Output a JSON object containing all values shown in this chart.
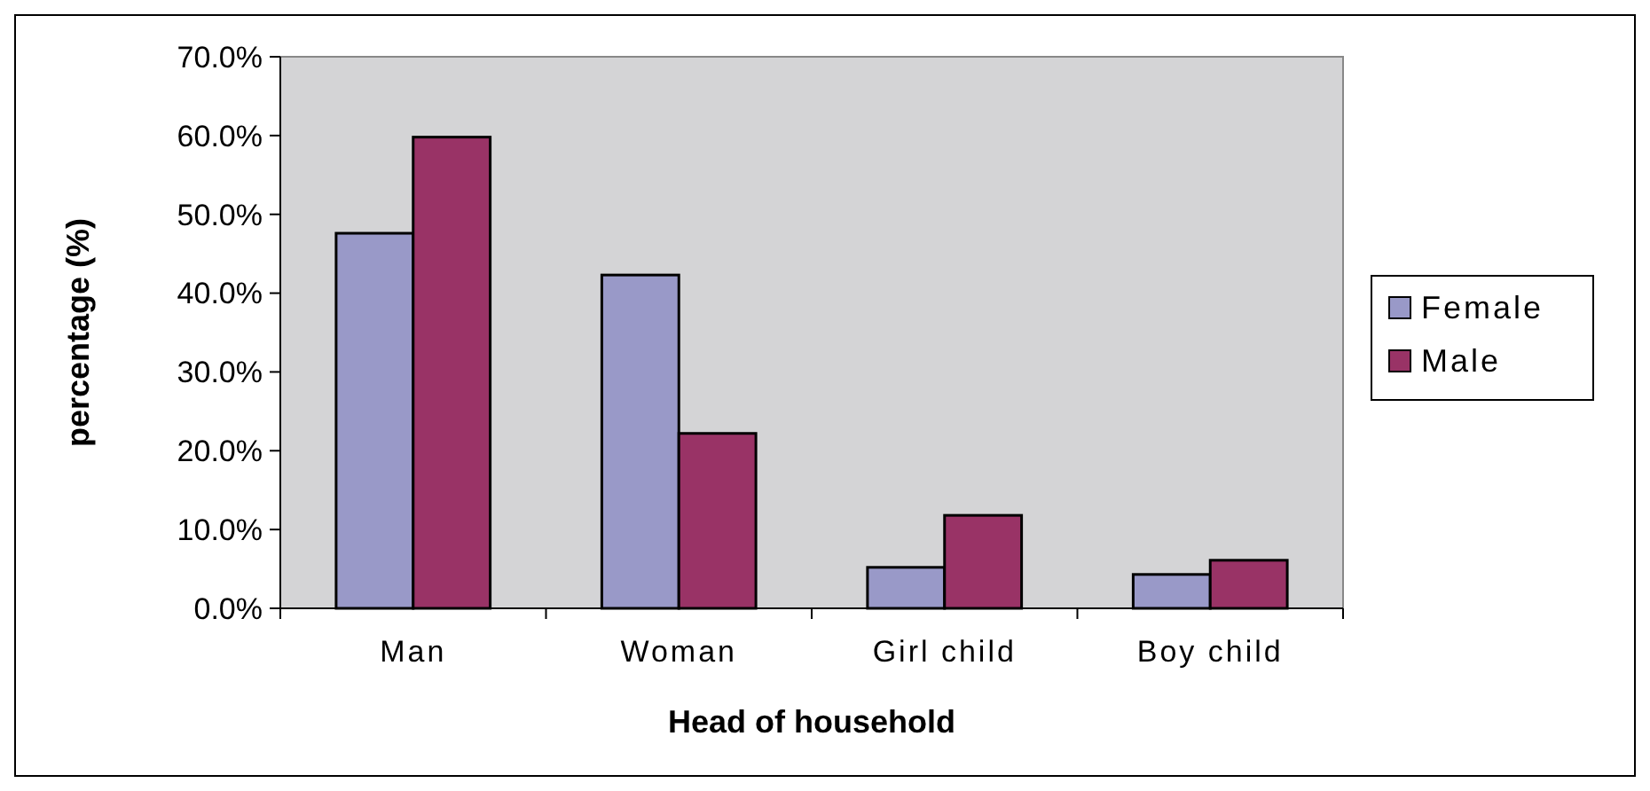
{
  "chart_data": {
    "type": "bar",
    "xlabel": "Head of household",
    "ylabel": "percentage (%)",
    "categories": [
      "Man",
      "Woman",
      "Girl child",
      "Boy child"
    ],
    "series": [
      {
        "name": "Female",
        "color": "#9999c8",
        "values": [
          47.6,
          42.3,
          5.2,
          4.3
        ]
      },
      {
        "name": "Male",
        "color": "#993366",
        "values": [
          59.8,
          22.2,
          11.8,
          6.1
        ]
      }
    ],
    "ylim": [
      0,
      70
    ],
    "yticks": [
      {
        "value": 0,
        "label": "0.0%"
      },
      {
        "value": 10,
        "label": "10.0%"
      },
      {
        "value": 20,
        "label": "20.0%"
      },
      {
        "value": 30,
        "label": "30.0%"
      },
      {
        "value": 40,
        "label": "40.0%"
      },
      {
        "value": 50,
        "label": "50.0%"
      },
      {
        "value": 60,
        "label": "60.0%"
      },
      {
        "value": 70,
        "label": "70.0%"
      }
    ],
    "grid": false,
    "legend": "right"
  }
}
